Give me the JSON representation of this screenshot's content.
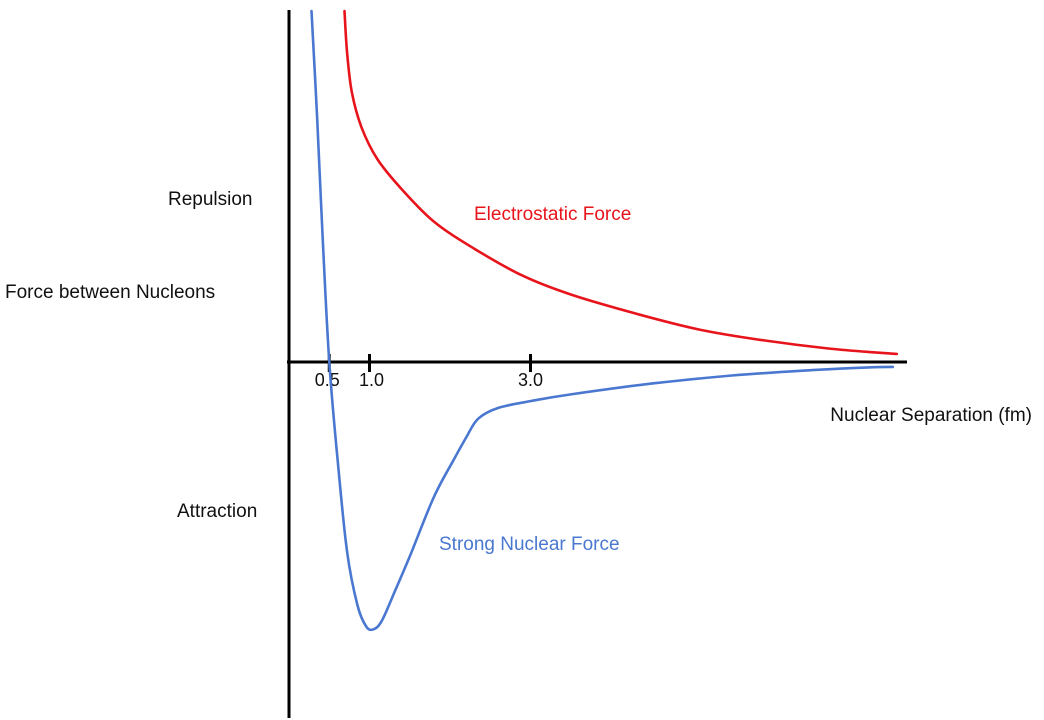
{
  "chart_data": {
    "type": "line",
    "title": "",
    "ylabel": "Force between Nucleons",
    "xlabel": "Nuclear Separation (fm)",
    "y_positive_label": "Repulsion",
    "y_negative_label": "Attraction",
    "x_ticks": [
      {
        "value": 0.5,
        "label": "0.5"
      },
      {
        "value": 1.0,
        "label": "1.0"
      },
      {
        "value": 3.0,
        "label": "3.0"
      }
    ],
    "xlim": [
      0,
      7.7
    ],
    "ylim": [
      -1.0,
      1.3
    ],
    "grid": false,
    "legend": "inline",
    "series": [
      {
        "name": "Electrostatic Force",
        "color": "#e8141c",
        "x": [
          0.69,
          0.72,
          0.78,
          0.9,
          1.1,
          1.4,
          1.8,
          2.3,
          2.9,
          3.5,
          4.3,
          5.1,
          5.9,
          6.7,
          7.3,
          7.55
        ],
        "y": [
          1.3,
          1.15,
          1.0,
          0.87,
          0.75,
          0.64,
          0.52,
          0.42,
          0.32,
          0.25,
          0.18,
          0.12,
          0.08,
          0.05,
          0.035,
          0.03
        ]
      },
      {
        "name": "Strong Nuclear Force",
        "color": "#4a78d0",
        "x": [
          0.28,
          0.35,
          0.42,
          0.5,
          0.6,
          0.72,
          0.85,
          0.96,
          1.05,
          1.15,
          1.3,
          1.5,
          1.8,
          2.05,
          2.2,
          2.35,
          2.6,
          3.0,
          3.5,
          4.5,
          5.5,
          6.5,
          7.2,
          7.5
        ],
        "y": [
          1.3,
          0.9,
          0.45,
          0.0,
          -0.35,
          -0.7,
          -0.9,
          -0.98,
          -0.99,
          -0.96,
          -0.86,
          -0.72,
          -0.5,
          -0.36,
          -0.28,
          -0.21,
          -0.17,
          -0.145,
          -0.12,
          -0.08,
          -0.05,
          -0.03,
          -0.02,
          -0.018
        ]
      }
    ]
  }
}
